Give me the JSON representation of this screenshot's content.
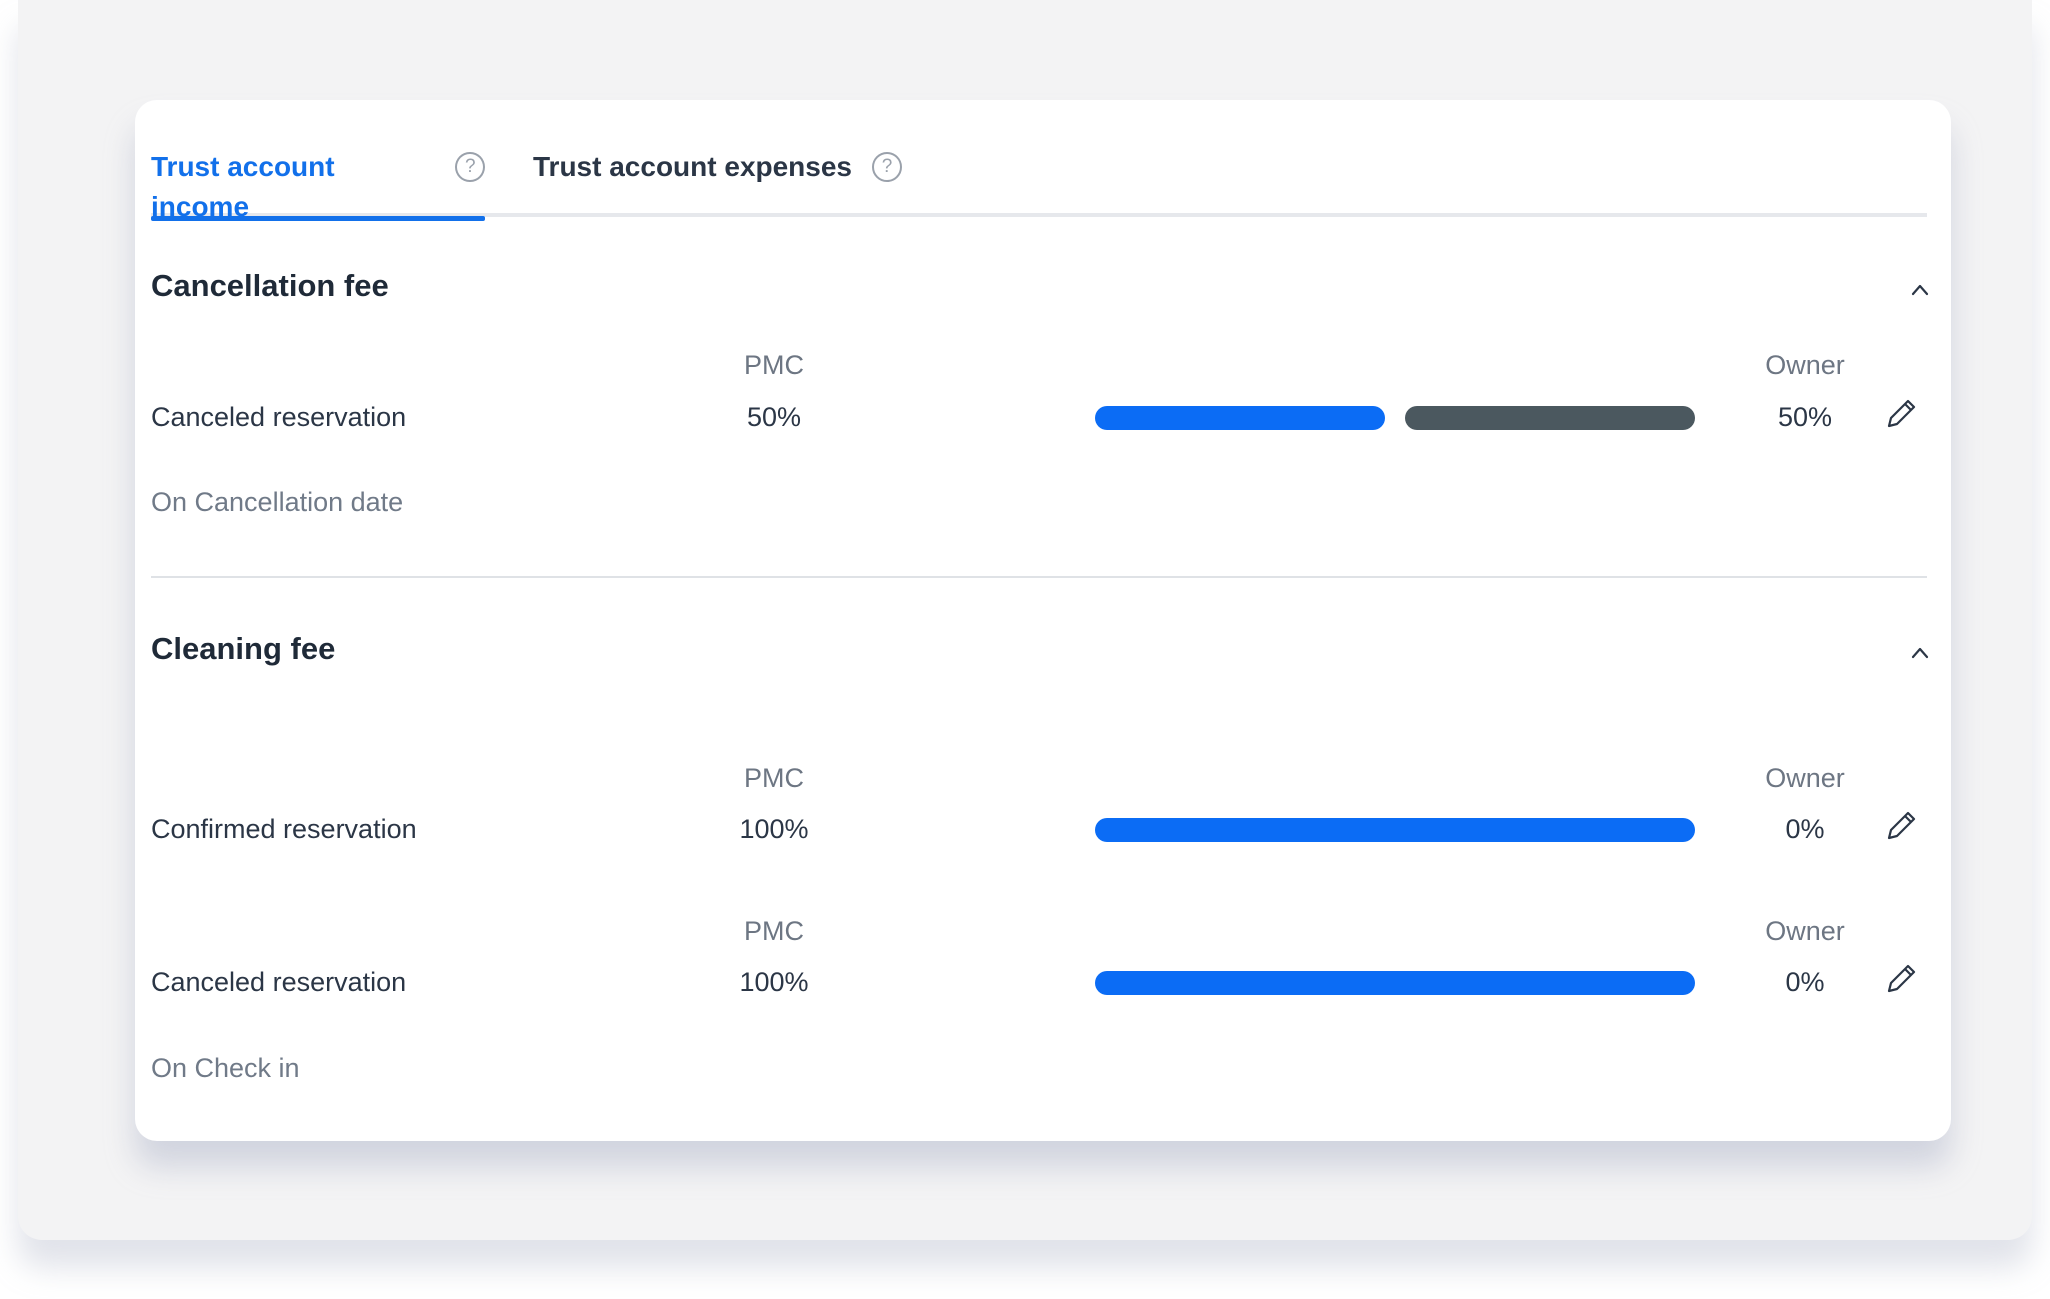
{
  "tabs": [
    {
      "label": "Trust account income",
      "active": true
    },
    {
      "label": "Trust account expenses",
      "active": false
    }
  ],
  "help_icon_glyph": "?",
  "sections": [
    {
      "title": "Cancellation fee",
      "rows": [
        {
          "label": "Canceled reservation",
          "pmc_header": "PMC",
          "owner_header": "Owner",
          "pmc_pct": "50%",
          "owner_pct": "50%",
          "pmc_share": 0.5,
          "owner_share": 0.5
        }
      ],
      "timing": "On Cancellation date"
    },
    {
      "title": "Cleaning fee",
      "rows": [
        {
          "label": "Confirmed reservation",
          "pmc_header": "PMC",
          "owner_header": "Owner",
          "pmc_pct": "100%",
          "owner_pct": "0%",
          "pmc_share": 1.0,
          "owner_share": 0.0
        },
        {
          "label": "Canceled reservation",
          "pmc_header": "PMC",
          "owner_header": "Owner",
          "pmc_pct": "100%",
          "owner_pct": "0%",
          "pmc_share": 1.0,
          "owner_share": 0.0
        }
      ],
      "timing": "On Check in"
    }
  ],
  "colors": {
    "accent": "#1270ea",
    "pmc_bar": "#0b6cf5",
    "owner_bar": "#4b585f"
  },
  "icons": {
    "help": "help-circle-icon",
    "collapse": "chevron-up-icon",
    "edit": "pencil-icon"
  }
}
